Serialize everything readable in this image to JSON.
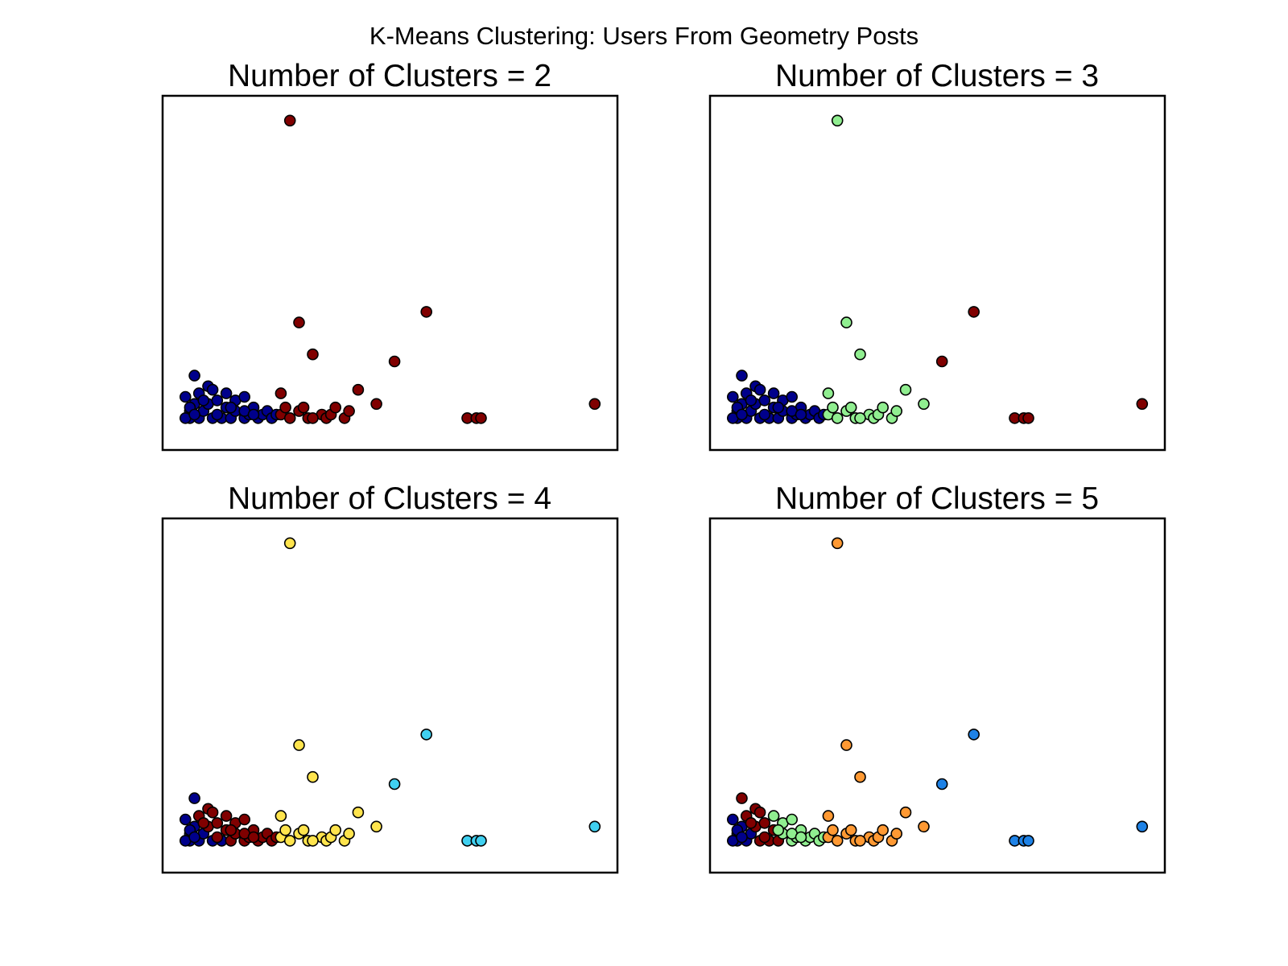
{
  "figure": {
    "title": "K-Means Clustering: Users From Geometry Posts"
  },
  "chart_data": [
    {
      "type": "scatter",
      "title": "Number of Clusters = 2",
      "xlim": [
        0,
        100
      ],
      "ylim": [
        0,
        100
      ],
      "grid": false,
      "axes_ticks": false,
      "series": [
        {
          "color": "#00008b",
          "points": [
            [
              5,
              15
            ],
            [
              6,
              11
            ],
            [
              6,
              9
            ],
            [
              7,
              21
            ],
            [
              7,
              13
            ],
            [
              8,
              9
            ],
            [
              8,
              16
            ],
            [
              9,
              11
            ],
            [
              10,
              18
            ],
            [
              10,
              13
            ],
            [
              11,
              17
            ],
            [
              11,
              9
            ],
            [
              12,
              14
            ],
            [
              13,
              9
            ],
            [
              14,
              16
            ],
            [
              14,
              12
            ],
            [
              15,
              9
            ],
            [
              16,
              11
            ],
            [
              16,
              14
            ],
            [
              18,
              15
            ],
            [
              18,
              9
            ],
            [
              19,
              10
            ],
            [
              20,
              12
            ],
            [
              21,
              9
            ],
            [
              22,
              10
            ],
            [
              23,
              11
            ],
            [
              24,
              9
            ],
            [
              25,
              10
            ],
            [
              6,
              12
            ],
            [
              5,
              9
            ],
            [
              7,
              10
            ],
            [
              9,
              14
            ],
            [
              12,
              10
            ],
            [
              15,
              12
            ],
            [
              18,
              11
            ],
            [
              20,
              10
            ]
          ]
        },
        {
          "color": "#800000",
          "points": [
            [
              28,
              93
            ],
            [
              30,
              36
            ],
            [
              33,
              27
            ],
            [
              26,
              10
            ],
            [
              28,
              9
            ],
            [
              30,
              11
            ],
            [
              32,
              9
            ],
            [
              35,
              10
            ],
            [
              26,
              16
            ],
            [
              27,
              12
            ],
            [
              31,
              12
            ],
            [
              33,
              9
            ],
            [
              36,
              9
            ],
            [
              37,
              10
            ],
            [
              38,
              12
            ],
            [
              40,
              9
            ],
            [
              41,
              11
            ],
            [
              43,
              17
            ],
            [
              47,
              13
            ],
            [
              51,
              25
            ],
            [
              58,
              39
            ],
            [
              67,
              9
            ],
            [
              69,
              9
            ],
            [
              70,
              9
            ],
            [
              95,
              13
            ]
          ]
        }
      ]
    },
    {
      "type": "scatter",
      "title": "Number of Clusters = 3",
      "xlim": [
        0,
        100
      ],
      "ylim": [
        0,
        100
      ],
      "grid": false,
      "axes_ticks": false,
      "series": [
        {
          "color": "#00008b",
          "points": [
            [
              5,
              15
            ],
            [
              6,
              11
            ],
            [
              6,
              9
            ],
            [
              7,
              21
            ],
            [
              7,
              13
            ],
            [
              8,
              9
            ],
            [
              8,
              16
            ],
            [
              9,
              11
            ],
            [
              10,
              18
            ],
            [
              10,
              13
            ],
            [
              11,
              17
            ],
            [
              11,
              9
            ],
            [
              12,
              14
            ],
            [
              13,
              9
            ],
            [
              14,
              16
            ],
            [
              14,
              12
            ],
            [
              15,
              9
            ],
            [
              16,
              11
            ],
            [
              16,
              14
            ],
            [
              18,
              15
            ],
            [
              18,
              9
            ],
            [
              19,
              10
            ],
            [
              20,
              12
            ],
            [
              21,
              9
            ],
            [
              22,
              10
            ],
            [
              23,
              11
            ],
            [
              24,
              9
            ],
            [
              25,
              10
            ],
            [
              6,
              12
            ],
            [
              5,
              9
            ],
            [
              7,
              10
            ],
            [
              9,
              14
            ],
            [
              12,
              10
            ],
            [
              15,
              12
            ],
            [
              18,
              11
            ],
            [
              20,
              10
            ]
          ]
        },
        {
          "color": "#90ee90",
          "points": [
            [
              28,
              93
            ],
            [
              30,
              36
            ],
            [
              33,
              27
            ],
            [
              26,
              10
            ],
            [
              28,
              9
            ],
            [
              30,
              11
            ],
            [
              32,
              9
            ],
            [
              35,
              10
            ],
            [
              26,
              16
            ],
            [
              27,
              12
            ],
            [
              31,
              12
            ],
            [
              33,
              9
            ],
            [
              36,
              9
            ],
            [
              37,
              10
            ],
            [
              38,
              12
            ],
            [
              40,
              9
            ],
            [
              41,
              11
            ],
            [
              43,
              17
            ],
            [
              47,
              13
            ]
          ]
        },
        {
          "color": "#800000",
          "points": [
            [
              51,
              25
            ],
            [
              58,
              39
            ],
            [
              67,
              9
            ],
            [
              69,
              9
            ],
            [
              70,
              9
            ],
            [
              95,
              13
            ]
          ]
        }
      ]
    },
    {
      "type": "scatter",
      "title": "Number of Clusters = 4",
      "xlim": [
        0,
        100
      ],
      "ylim": [
        0,
        100
      ],
      "grid": false,
      "axes_ticks": false,
      "series": [
        {
          "color": "#00008b",
          "points": [
            [
              5,
              15
            ],
            [
              6,
              11
            ],
            [
              6,
              9
            ],
            [
              7,
              21
            ],
            [
              7,
              13
            ],
            [
              8,
              9
            ],
            [
              9,
              11
            ],
            [
              11,
              9
            ],
            [
              13,
              9
            ],
            [
              5,
              9
            ],
            [
              6,
              12
            ],
            [
              7,
              10
            ]
          ]
        },
        {
          "color": "#800000",
          "points": [
            [
              8,
              16
            ],
            [
              10,
              18
            ],
            [
              10,
              13
            ],
            [
              11,
              17
            ],
            [
              12,
              14
            ],
            [
              14,
              16
            ],
            [
              14,
              12
            ],
            [
              15,
              9
            ],
            [
              16,
              11
            ],
            [
              16,
              14
            ],
            [
              18,
              15
            ],
            [
              18,
              9
            ],
            [
              19,
              10
            ],
            [
              20,
              12
            ],
            [
              21,
              9
            ],
            [
              22,
              10
            ],
            [
              23,
              11
            ],
            [
              24,
              9
            ],
            [
              25,
              10
            ],
            [
              9,
              14
            ],
            [
              12,
              10
            ],
            [
              15,
              12
            ],
            [
              18,
              11
            ],
            [
              20,
              10
            ]
          ]
        },
        {
          "color": "#ffe44d",
          "points": [
            [
              28,
              93
            ],
            [
              30,
              36
            ],
            [
              33,
              27
            ],
            [
              26,
              10
            ],
            [
              28,
              9
            ],
            [
              30,
              11
            ],
            [
              32,
              9
            ],
            [
              35,
              10
            ],
            [
              26,
              16
            ],
            [
              27,
              12
            ],
            [
              31,
              12
            ],
            [
              33,
              9
            ],
            [
              36,
              9
            ],
            [
              37,
              10
            ],
            [
              38,
              12
            ],
            [
              40,
              9
            ],
            [
              41,
              11
            ],
            [
              43,
              17
            ],
            [
              47,
              13
            ]
          ]
        },
        {
          "color": "#40d0f0",
          "points": [
            [
              51,
              25
            ],
            [
              58,
              39
            ],
            [
              67,
              9
            ],
            [
              69,
              9
            ],
            [
              70,
              9
            ],
            [
              95,
              13
            ]
          ]
        }
      ]
    },
    {
      "type": "scatter",
      "title": "Number of Clusters = 5",
      "xlim": [
        0,
        100
      ],
      "ylim": [
        0,
        100
      ],
      "grid": false,
      "axes_ticks": false,
      "series": [
        {
          "color": "#00008b",
          "points": [
            [
              5,
              15
            ],
            [
              6,
              11
            ],
            [
              6,
              9
            ],
            [
              7,
              13
            ],
            [
              8,
              9
            ],
            [
              9,
              11
            ],
            [
              5,
              9
            ],
            [
              6,
              12
            ],
            [
              7,
              10
            ]
          ]
        },
        {
          "color": "#800000",
          "points": [
            [
              7,
              21
            ],
            [
              8,
              16
            ],
            [
              10,
              18
            ],
            [
              10,
              13
            ],
            [
              11,
              17
            ],
            [
              12,
              14
            ],
            [
              11,
              9
            ],
            [
              13,
              9
            ],
            [
              14,
              12
            ],
            [
              9,
              14
            ],
            [
              12,
              10
            ],
            [
              15,
              9
            ]
          ]
        },
        {
          "color": "#90ee90",
          "points": [
            [
              14,
              16
            ],
            [
              16,
              11
            ],
            [
              16,
              14
            ],
            [
              18,
              15
            ],
            [
              18,
              9
            ],
            [
              19,
              10
            ],
            [
              20,
              12
            ],
            [
              21,
              9
            ],
            [
              22,
              10
            ],
            [
              23,
              11
            ],
            [
              24,
              9
            ],
            [
              25,
              10
            ],
            [
              15,
              12
            ],
            [
              18,
              11
            ],
            [
              20,
              10
            ]
          ]
        },
        {
          "color": "#ff9933",
          "points": [
            [
              28,
              93
            ],
            [
              30,
              36
            ],
            [
              33,
              27
            ],
            [
              26,
              10
            ],
            [
              28,
              9
            ],
            [
              30,
              11
            ],
            [
              32,
              9
            ],
            [
              35,
              10
            ],
            [
              26,
              16
            ],
            [
              27,
              12
            ],
            [
              31,
              12
            ],
            [
              33,
              9
            ],
            [
              36,
              9
            ],
            [
              37,
              10
            ],
            [
              38,
              12
            ],
            [
              40,
              9
            ],
            [
              41,
              11
            ],
            [
              43,
              17
            ],
            [
              47,
              13
            ]
          ]
        },
        {
          "color": "#1e82e6",
          "points": [
            [
              51,
              25
            ],
            [
              58,
              39
            ],
            [
              67,
              9
            ],
            [
              69,
              9
            ],
            [
              70,
              9
            ],
            [
              95,
              13
            ]
          ]
        }
      ]
    }
  ]
}
